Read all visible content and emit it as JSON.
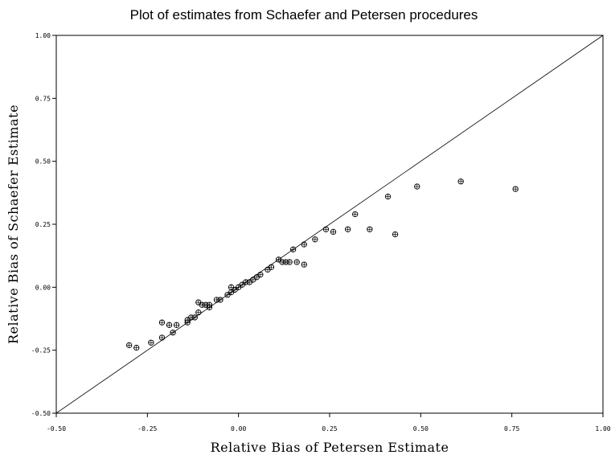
{
  "chart_data": {
    "type": "scatter",
    "title": "Plot of estimates from Schaefer and Petersen procedures",
    "xlabel": "Relative Bias of Petersen Estimate",
    "ylabel": "Relative Bias of Schaefer Estimate",
    "xlim": [
      -0.5,
      1.0
    ],
    "ylim": [
      -0.5,
      1.0
    ],
    "x_ticks": [
      -0.5,
      -0.25,
      0.0,
      0.25,
      0.5,
      0.75,
      1.0
    ],
    "y_ticks": [
      -0.5,
      -0.25,
      0.0,
      0.25,
      0.5,
      0.75,
      1.0
    ],
    "x_tick_labels": [
      "-0.50",
      "-0.25",
      "0.00",
      "0.25",
      "0.50",
      "0.75",
      "1.00"
    ],
    "y_tick_labels": [
      "-0.50",
      "-0.25",
      "0.00",
      "0.25",
      "0.50",
      "0.75",
      "1.00"
    ],
    "grid": false,
    "reference_line": {
      "from": [
        -0.5,
        -0.5
      ],
      "to": [
        1.0,
        1.0
      ]
    },
    "marker": "circle-plus",
    "points": [
      {
        "x": -0.3,
        "y": -0.23
      },
      {
        "x": -0.28,
        "y": -0.24
      },
      {
        "x": -0.24,
        "y": -0.22
      },
      {
        "x": -0.21,
        "y": -0.14
      },
      {
        "x": -0.19,
        "y": -0.15
      },
      {
        "x": -0.21,
        "y": -0.2
      },
      {
        "x": -0.18,
        "y": -0.18
      },
      {
        "x": -0.17,
        "y": -0.15
      },
      {
        "x": -0.14,
        "y": -0.14
      },
      {
        "x": -0.14,
        "y": -0.13
      },
      {
        "x": -0.13,
        "y": -0.12
      },
      {
        "x": -0.12,
        "y": -0.12
      },
      {
        "x": -0.11,
        "y": -0.06
      },
      {
        "x": -0.1,
        "y": -0.07
      },
      {
        "x": -0.09,
        "y": -0.07
      },
      {
        "x": -0.08,
        "y": -0.07
      },
      {
        "x": -0.11,
        "y": -0.1
      },
      {
        "x": -0.08,
        "y": -0.08
      },
      {
        "x": -0.06,
        "y": -0.05
      },
      {
        "x": -0.05,
        "y": -0.05
      },
      {
        "x": -0.03,
        "y": -0.03
      },
      {
        "x": -0.02,
        "y": -0.02
      },
      {
        "x": -0.02,
        "y": 0.0
      },
      {
        "x": -0.01,
        "y": -0.01
      },
      {
        "x": 0.0,
        "y": 0.0
      },
      {
        "x": 0.01,
        "y": 0.01
      },
      {
        "x": 0.02,
        "y": 0.02
      },
      {
        "x": 0.03,
        "y": 0.02
      },
      {
        "x": 0.04,
        "y": 0.03
      },
      {
        "x": 0.05,
        "y": 0.04
      },
      {
        "x": 0.06,
        "y": 0.05
      },
      {
        "x": 0.08,
        "y": 0.07
      },
      {
        "x": 0.09,
        "y": 0.08
      },
      {
        "x": 0.11,
        "y": 0.11
      },
      {
        "x": 0.12,
        "y": 0.1
      },
      {
        "x": 0.13,
        "y": 0.1
      },
      {
        "x": 0.14,
        "y": 0.1
      },
      {
        "x": 0.16,
        "y": 0.1
      },
      {
        "x": 0.15,
        "y": 0.15
      },
      {
        "x": 0.18,
        "y": 0.09
      },
      {
        "x": 0.18,
        "y": 0.17
      },
      {
        "x": 0.21,
        "y": 0.19
      },
      {
        "x": 0.24,
        "y": 0.23
      },
      {
        "x": 0.26,
        "y": 0.22
      },
      {
        "x": 0.3,
        "y": 0.23
      },
      {
        "x": 0.32,
        "y": 0.29
      },
      {
        "x": 0.36,
        "y": 0.23
      },
      {
        "x": 0.41,
        "y": 0.36
      },
      {
        "x": 0.43,
        "y": 0.21
      },
      {
        "x": 0.49,
        "y": 0.4
      },
      {
        "x": 0.61,
        "y": 0.42
      },
      {
        "x": 0.76,
        "y": 0.39
      }
    ]
  }
}
